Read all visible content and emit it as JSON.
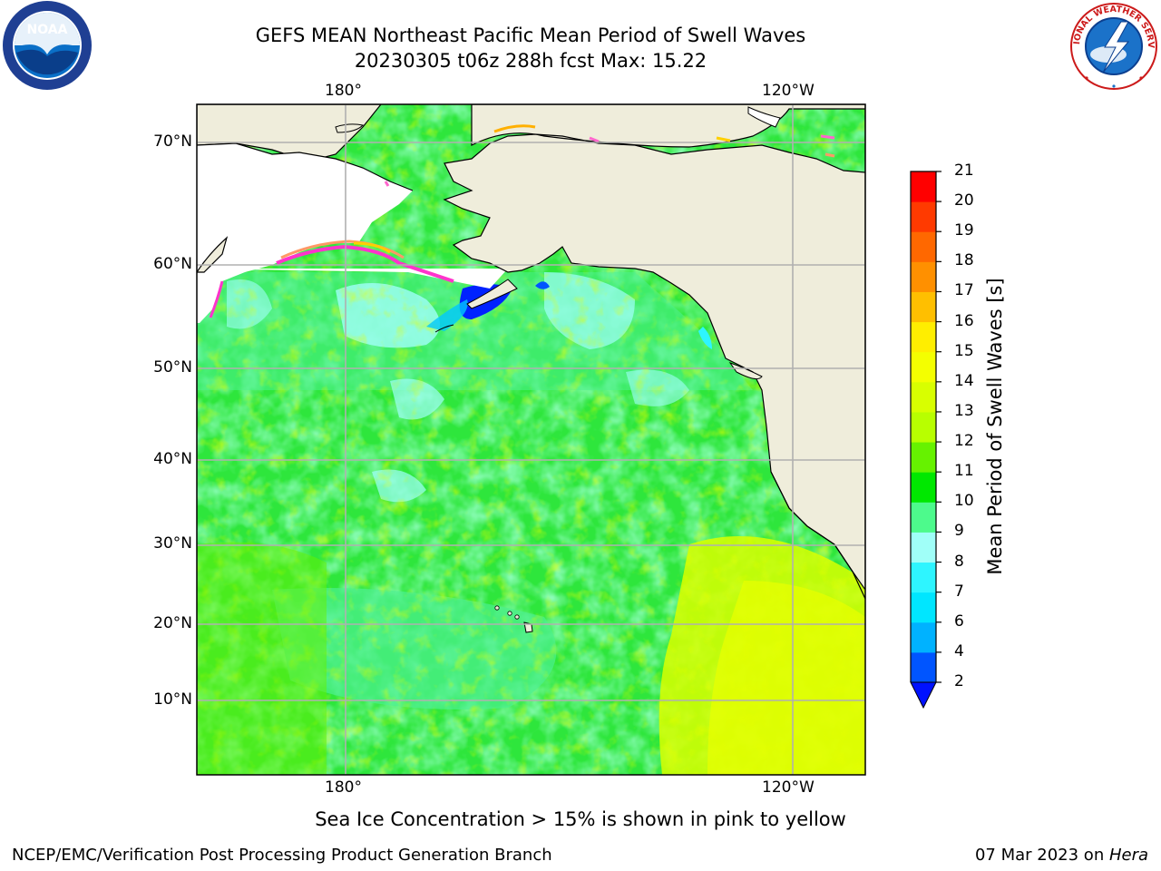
{
  "header": {
    "title_line1": "GEFS MEAN Northeast Pacific Mean Period of Swell Waves",
    "title_line2": "20230305 t06z 288h fcst   Max: 15.22"
  },
  "logos": {
    "left": {
      "name": "noaa-logo",
      "text": "NOAA"
    },
    "right": {
      "name": "nws-logo",
      "text": "NATIONAL WEATHER SERVICE"
    }
  },
  "map": {
    "lon_ticks": [
      "180°",
      "120°W"
    ],
    "lat_ticks": [
      "70°N",
      "60°N",
      "50°N",
      "40°N",
      "30°N",
      "20°N",
      "10°N"
    ],
    "colors": {
      "land": "#efeddb",
      "coast": "#000000",
      "grid": "#b0b0b0",
      "ice_pink": "#ff66cc",
      "ice_yellow": "#ffd000"
    }
  },
  "colorbar": {
    "label": "Mean Period of Swell Waves [s]",
    "levels": [
      "2",
      "4",
      "6",
      "7",
      "8",
      "9",
      "10",
      "11",
      "12",
      "13",
      "14",
      "15",
      "16",
      "17",
      "18",
      "19",
      "20",
      "21"
    ],
    "colors": [
      "#0055ff",
      "#00b2ff",
      "#00e6ff",
      "#2ef5ff",
      "#a0fff8",
      "#4dfa8c",
      "#00e800",
      "#66f200",
      "#b8ff00",
      "#d8ff00",
      "#f4ff00",
      "#ffee00",
      "#ffbf00",
      "#ff9000",
      "#ff6800",
      "#ff3a00",
      "#ff0000"
    ],
    "under_color": "#0011ff"
  },
  "caption": "Sea Ice Concentration > 15% is shown in pink to yellow",
  "footer": {
    "left": "NCEP/EMC/Verification Post Processing Product Generation Branch",
    "right_prefix": "07 Mar 2023 on ",
    "right_machine": "Hera"
  }
}
